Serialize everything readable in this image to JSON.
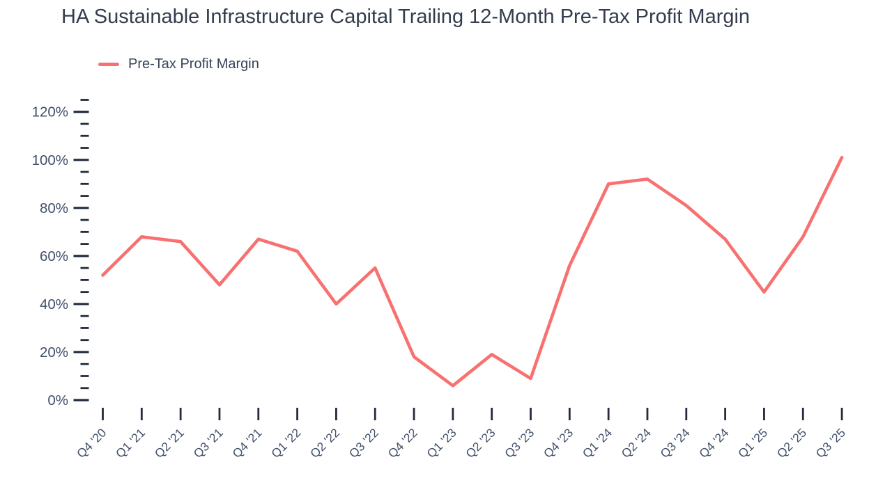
{
  "header": {
    "title": "HA Sustainable Infrastructure Capital Trailing 12-Month Pre-Tax Profit Margin"
  },
  "legend": {
    "items": [
      {
        "label": "Pre-Tax Profit Margin",
        "color": "#f87171"
      }
    ]
  },
  "colors": {
    "line": "#f87171",
    "title_text": "#333d4d",
    "axis_text": "#42506a",
    "tick": "#222c3c",
    "background": "#ffffff"
  },
  "chart_data": {
    "type": "line",
    "title": "HA Sustainable Infrastructure Capital Trailing 12-Month Pre-Tax Profit Margin",
    "xlabel": "",
    "ylabel": "",
    "grid": false,
    "legend_position": "top-left",
    "categories": [
      "Q4 '20",
      "Q1 '21",
      "Q2 '21",
      "Q3 '21",
      "Q4 '21",
      "Q1 '22",
      "Q2 '22",
      "Q3 '22",
      "Q4 '22",
      "Q1 '23",
      "Q2 '23",
      "Q3 '23",
      "Q4 '23",
      "Q1 '24",
      "Q2 '24",
      "Q3 '24",
      "Q4 '24",
      "Q1 '25",
      "Q2 '25",
      "Q3 '25"
    ],
    "series": [
      {
        "name": "Pre-Tax Profit Margin",
        "color": "#f87171",
        "unit": "%",
        "values": [
          52,
          68,
          66,
          48,
          67,
          62,
          40,
          55,
          18,
          6,
          19,
          9,
          56,
          90,
          92,
          81,
          67,
          45,
          68,
          101
        ]
      }
    ],
    "y_axis": {
      "min": 0,
      "max": 125,
      "unit": "%",
      "major_tick_interval": 20,
      "minor_tick_interval": 5,
      "tick_labels": [
        "0%",
        "20%",
        "40%",
        "60%",
        "80%",
        "100%",
        "120%"
      ]
    }
  }
}
